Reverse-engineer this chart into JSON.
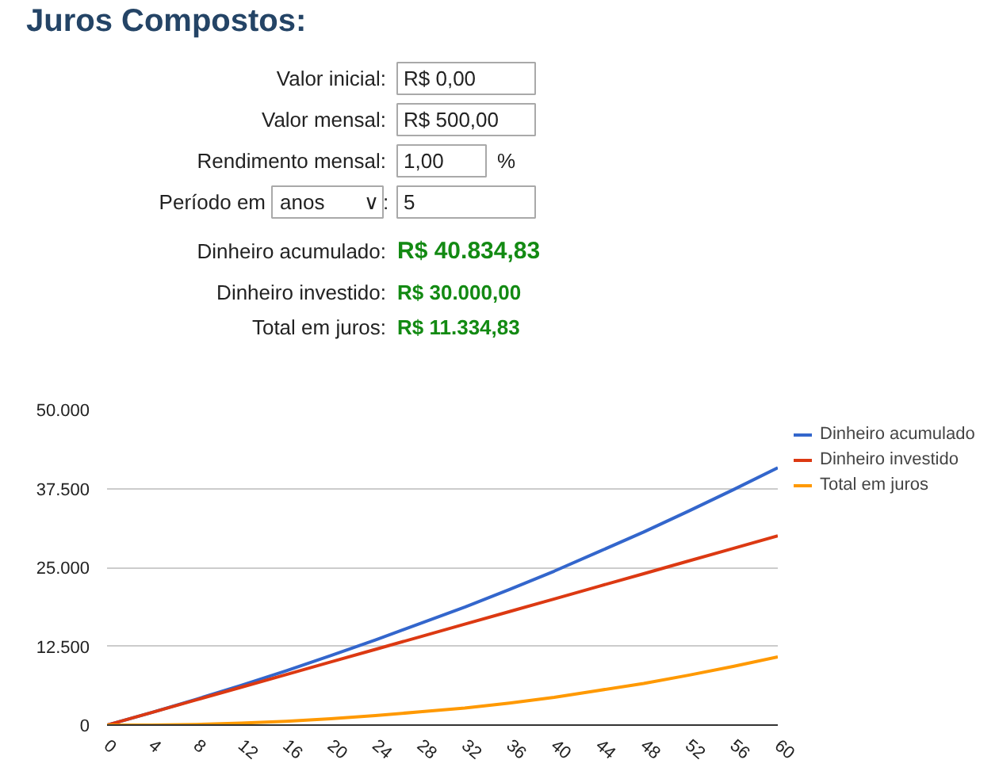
{
  "chart_data": {
    "type": "line",
    "title": "Juros Compostos:",
    "annotations": [
      "Valor inicial:",
      "R$ 0,00",
      "Valor mensal:",
      "R$ 500,00",
      "Rendimento mensal:",
      "1,00",
      "%",
      "Período em",
      "anos",
      "∨",
      ":",
      "5",
      "Dinheiro acumulado:",
      "R$ 40.834,83",
      "Dinheiro investido:",
      "R$ 30.000,00",
      "Total em juros:",
      "R$ 11.334,83"
    ],
    "x": [
      0,
      4,
      8,
      12,
      16,
      20,
      24,
      28,
      32,
      36,
      40,
      44,
      48,
      52,
      56,
      60
    ],
    "series": [
      {
        "name": "Dinheiro acumulado",
        "color": "#3366cc",
        "values": [
          0,
          2000,
          4100,
          6300,
          8600,
          11000,
          13500,
          16100,
          18700,
          21500,
          24400,
          27500,
          30600,
          33900,
          37300,
          40800
        ]
      },
      {
        "name": "Dinheiro investido",
        "color": "#dc3912",
        "values": [
          0,
          2000,
          4000,
          6000,
          8000,
          10000,
          12000,
          14000,
          16000,
          18000,
          20000,
          22000,
          24000,
          26000,
          28000,
          30000
        ]
      },
      {
        "name": "Total em juros",
        "color": "#ff9900",
        "values": [
          0,
          0,
          100,
          300,
          600,
          1000,
          1500,
          2100,
          2700,
          3500,
          4400,
          5500,
          6600,
          7900,
          9300,
          10800
        ]
      }
    ],
    "xlim": [
      0,
      60
    ],
    "xticks": [
      0,
      4,
      8,
      12,
      16,
      20,
      24,
      28,
      32,
      36,
      40,
      44,
      48,
      52,
      56,
      60
    ],
    "ylim": [
      0,
      50000
    ],
    "yticks": [
      {
        "value": 0,
        "label": "0"
      },
      {
        "value": 12500,
        "label": "12.500"
      },
      {
        "value": 25000,
        "label": "25.000"
      },
      {
        "value": 37500,
        "label": "37.500"
      },
      {
        "value": 50000,
        "label": "50.000"
      }
    ],
    "grid": "y",
    "legend": "right",
    "marker": "none",
    "line_style": "solid"
  }
}
